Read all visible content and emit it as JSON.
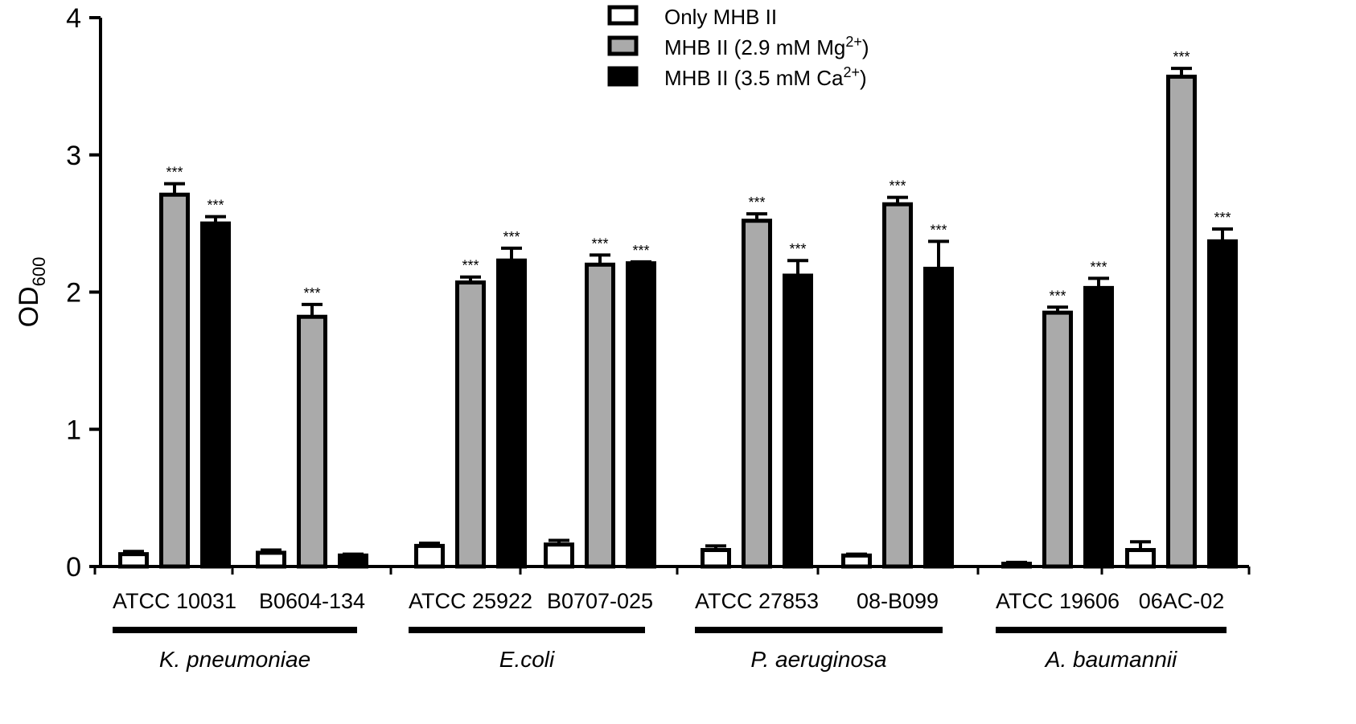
{
  "chart_data": {
    "type": "bar",
    "title": "",
    "ylabel": "OD",
    "ylabel_subscript": "600",
    "ylim": [
      0,
      4
    ],
    "yticks": [
      "0",
      "1",
      "2",
      "3",
      "4"
    ],
    "categories": [
      "ATCC 10031",
      "B0604-134",
      "ATCC 25922",
      "B0707-025",
      "ATCC 27853",
      "08-B099",
      "ATCC 19606",
      "06AC-02"
    ],
    "groups": [
      {
        "label": "K. pneumoniae",
        "start": 0,
        "end": 1
      },
      {
        "label": "E.coli",
        "start": 2,
        "end": 3
      },
      {
        "label": "P. aeruginosa",
        "start": 4,
        "end": 5
      },
      {
        "label": "A. baumannii",
        "start": 6,
        "end": 7
      }
    ],
    "significance_label": "***",
    "series": [
      {
        "name": "Only MHB II",
        "legend_main": "Only MHB II",
        "legend_sup": "",
        "legend_tail": "",
        "fill": "#ffffff",
        "values": [
          0.09,
          0.1,
          0.15,
          0.16,
          0.12,
          0.08,
          0.02,
          0.12
        ],
        "errors": [
          0.02,
          0.02,
          0.02,
          0.03,
          0.03,
          0.01,
          0.01,
          0.06
        ],
        "significant": [
          false,
          false,
          false,
          false,
          false,
          false,
          false,
          false
        ]
      },
      {
        "name": "MHB II (2.9 mM Mg2+)",
        "legend_main": "MHB II (2.9 mM Mg",
        "legend_sup": "2+",
        "legend_tail": ")",
        "fill": "#aaaaaa",
        "values": [
          2.71,
          1.82,
          2.07,
          2.2,
          2.52,
          2.64,
          1.85,
          3.57
        ],
        "errors": [
          0.08,
          0.09,
          0.04,
          0.07,
          0.05,
          0.05,
          0.04,
          0.06
        ],
        "significant": [
          true,
          true,
          true,
          true,
          true,
          true,
          true,
          true
        ]
      },
      {
        "name": "MHB II (3.5 mM Ca2+)",
        "legend_main": "MHB II (3.5 mM Ca",
        "legend_sup": "2+",
        "legend_tail": ")",
        "fill": "#000000",
        "values": [
          2.5,
          0.08,
          2.23,
          2.21,
          2.12,
          2.17,
          2.03,
          2.37
        ],
        "errors": [
          0.05,
          0.01,
          0.09,
          0.01,
          0.11,
          0.2,
          0.07,
          0.09
        ],
        "significant": [
          true,
          false,
          true,
          true,
          true,
          true,
          true,
          true
        ]
      }
    ]
  }
}
